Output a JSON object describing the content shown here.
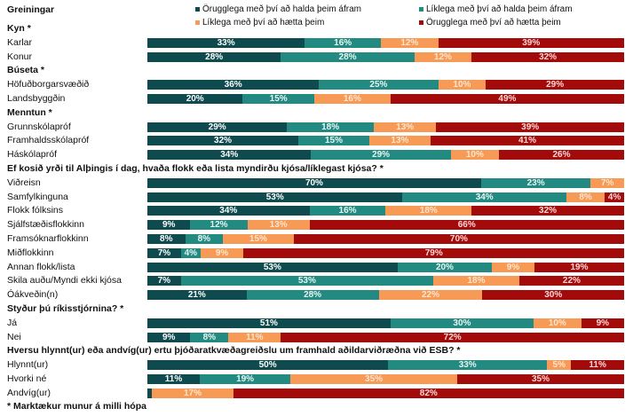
{
  "header": {
    "title": "Greiningar"
  },
  "legend": [
    {
      "label": "Örugglega með því að halda þeim áfram",
      "color": "#0e4a4e"
    },
    {
      "label": "Líklega með því að halda þeim áfram",
      "color": "#228a80"
    },
    {
      "label": "Líklega með því að hætta þeim",
      "color": "#f79a55"
    },
    {
      "label": "Örugglega með því að hætta þeim",
      "color": "#a30b0b"
    }
  ],
  "footnote": "* Marktækur munur á milli hópa",
  "chart_data": {
    "type": "bar",
    "orientation": "horizontal",
    "stacked": true,
    "normalized_percent": true,
    "title": "Greiningar",
    "xlabel": "",
    "ylabel": "",
    "xlim": [
      0,
      100
    ],
    "grid": false,
    "legend_position": "top",
    "series": [
      {
        "name": "Örugglega með því að halda þeim áfram",
        "color": "#0e4a4e"
      },
      {
        "name": "Líklega með því að halda þeim áfram",
        "color": "#228a80"
      },
      {
        "name": "Líklega með því að hætta þeim",
        "color": "#f79a55"
      },
      {
        "name": "Örugglega með því að hætta þeim",
        "color": "#a30b0b"
      }
    ],
    "groups": [
      {
        "heading": "Kyn *",
        "rows": [
          {
            "label": "Karlar",
            "values": [
              33,
              16,
              12,
              39
            ]
          },
          {
            "label": "Konur",
            "values": [
              28,
              28,
              12,
              32
            ]
          }
        ]
      },
      {
        "heading": "Búseta *",
        "rows": [
          {
            "label": "Höfuðborgarsvæðið",
            "values": [
              36,
              25,
              10,
              29
            ]
          },
          {
            "label": "Landsbyggðin",
            "values": [
              20,
              15,
              16,
              49
            ]
          }
        ]
      },
      {
        "heading": "Menntun *",
        "rows": [
          {
            "label": "Grunnskólapróf",
            "values": [
              29,
              18,
              13,
              39
            ]
          },
          {
            "label": "Framhaldsskólapróf",
            "values": [
              32,
              15,
              13,
              41
            ]
          },
          {
            "label": "Háskólapróf",
            "values": [
              34,
              29,
              10,
              26
            ]
          }
        ]
      },
      {
        "heading": "Ef kosið yrði til Alþingis í dag, hvaða flokk eða lista myndirðu kjósa/líklegast kjósa? *",
        "rows": [
          {
            "label": "Viðreisn",
            "values": [
              70,
              23,
              7,
              0
            ]
          },
          {
            "label": "Samfylkinguna",
            "values": [
              53,
              34,
              8,
              4
            ]
          },
          {
            "label": "Flokk fólksins",
            "values": [
              34,
              16,
              18,
              32
            ]
          },
          {
            "label": "Sjálfstæðisflokkinn",
            "values": [
              9,
              12,
              13,
              66
            ]
          },
          {
            "label": "Framsóknarflokkinn",
            "values": [
              8,
              8,
              15,
              70
            ]
          },
          {
            "label": "Miðflokkinn",
            "values": [
              7,
              4,
              9,
              79
            ]
          },
          {
            "label": "Annan flokk/lista",
            "values": [
              53,
              20,
              9,
              19
            ]
          },
          {
            "label": "Skila auðu/Myndi ekki kjósa",
            "values": [
              7,
              53,
              18,
              22
            ]
          },
          {
            "label": "Óákveðin(n)",
            "values": [
              21,
              28,
              22,
              30
            ]
          }
        ]
      },
      {
        "heading": "Styður þú ríkisstjórnina? *",
        "rows": [
          {
            "label": "Já",
            "values": [
              51,
              30,
              10,
              9
            ]
          },
          {
            "label": "Nei",
            "values": [
              9,
              8,
              11,
              72
            ]
          }
        ]
      },
      {
        "heading": "Hversu hlynnt(ur) eða andvíg(ur) ertu þjóðaratkvæðagreiðslu um framhald aðildarviðræðna við ESB? *",
        "rows": [
          {
            "label": "Hlynnt(ur)",
            "values": [
              50,
              33,
              5,
              11
            ]
          },
          {
            "label": "Hvorki né",
            "values": [
              11,
              19,
              35,
              35
            ]
          },
          {
            "label": "Andvíg(ur)",
            "values": [
              1,
              0,
              17,
              82
            ]
          }
        ]
      }
    ]
  }
}
